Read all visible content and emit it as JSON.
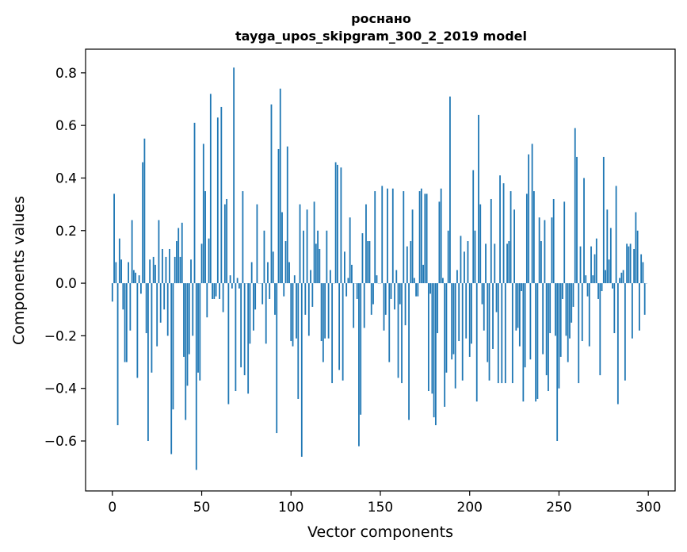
{
  "chart_data": {
    "type": "bar",
    "title_line1": "роснано",
    "title_line2": "tayga_upos_skipgram_300_2_2019 model",
    "xlabel": "Vector components",
    "ylabel": "Components values",
    "xlim": [
      -15,
      315
    ],
    "ylim": [
      -0.79,
      0.89
    ],
    "xticks": [
      0,
      50,
      100,
      150,
      200,
      250,
      300
    ],
    "xtick_labels": [
      "0",
      "50",
      "100",
      "150",
      "200",
      "250",
      "300"
    ],
    "yticks": [
      -0.6,
      -0.4,
      -0.2,
      0.0,
      0.2,
      0.4,
      0.6,
      0.8
    ],
    "ytick_labels": [
      "−0.6",
      "−0.4",
      "−0.2",
      "0.0",
      "0.2",
      "0.4",
      "0.6",
      "0.8"
    ],
    "bar_color": "#1f77b4",
    "grid": false,
    "values": [
      -0.07,
      0.34,
      0.08,
      -0.54,
      0.17,
      0.09,
      -0.1,
      -0.3,
      -0.3,
      0.08,
      -0.18,
      0.24,
      0.05,
      0.04,
      -0.36,
      0.03,
      -0.04,
      0.46,
      0.55,
      -0.19,
      -0.6,
      0.09,
      -0.34,
      0.1,
      0.07,
      -0.24,
      0.24,
      -0.15,
      0.13,
      -0.1,
      0.1,
      -0.2,
      0.13,
      -0.65,
      -0.48,
      0.1,
      0.16,
      0.21,
      0.1,
      0.23,
      -0.28,
      -0.52,
      -0.39,
      -0.27,
      0.09,
      -0.2,
      0.61,
      -0.71,
      -0.34,
      -0.37,
      0.15,
      0.53,
      0.35,
      -0.13,
      0.17,
      0.72,
      -0.06,
      -0.06,
      -0.05,
      0.63,
      -0.06,
      0.67,
      -0.11,
      0.3,
      0.32,
      -0.46,
      0.03,
      -0.02,
      0.82,
      -0.41,
      0.02,
      -0.02,
      -0.32,
      0.35,
      -0.35,
      0.0,
      -0.42,
      -0.23,
      0.08,
      -0.18,
      -0.1,
      0.3,
      0.0,
      0.0,
      -0.08,
      0.2,
      -0.23,
      0.08,
      -0.06,
      0.68,
      0.12,
      -0.12,
      -0.57,
      0.51,
      0.74,
      0.27,
      -0.05,
      0.16,
      0.52,
      0.08,
      -0.22,
      -0.24,
      0.03,
      -0.21,
      -0.44,
      0.3,
      -0.66,
      0.2,
      -0.12,
      0.28,
      -0.2,
      0.05,
      -0.09,
      0.31,
      0.15,
      0.2,
      0.13,
      -0.22,
      -0.3,
      -0.21,
      0.2,
      -0.21,
      0.05,
      -0.38,
      0.0,
      0.46,
      0.45,
      -0.33,
      0.44,
      -0.37,
      0.12,
      -0.05,
      0.02,
      0.25,
      0.07,
      -0.17,
      0.0,
      -0.06,
      -0.62,
      -0.5,
      0.19,
      -0.17,
      0.3,
      0.16,
      0.16,
      -0.12,
      -0.08,
      0.35,
      0.03,
      0.0,
      0.0,
      0.37,
      -0.18,
      -0.12,
      0.36,
      -0.3,
      -0.06,
      0.36,
      -0.1,
      0.05,
      -0.36,
      -0.08,
      -0.38,
      0.35,
      -0.16,
      0.14,
      -0.52,
      0.16,
      0.28,
      0.02,
      -0.05,
      -0.05,
      0.35,
      0.36,
      0.07,
      0.34,
      0.34,
      -0.41,
      -0.04,
      -0.42,
      -0.51,
      -0.54,
      -0.19,
      0.31,
      0.36,
      0.02,
      -0.47,
      -0.34,
      0.2,
      0.71,
      -0.29,
      -0.27,
      -0.4,
      0.05,
      -0.22,
      0.18,
      -0.37,
      0.12,
      -0.21,
      0.16,
      -0.28,
      -0.23,
      0.43,
      0.2,
      -0.45,
      0.64,
      0.3,
      -0.08,
      -0.18,
      0.15,
      -0.3,
      -0.37,
      0.32,
      -0.25,
      0.15,
      -0.11,
      -0.38,
      0.41,
      -0.38,
      0.38,
      -0.38,
      0.15,
      0.16,
      0.35,
      -0.38,
      0.28,
      -0.18,
      -0.17,
      -0.24,
      -0.03,
      -0.45,
      -0.32,
      0.34,
      0.49,
      -0.29,
      0.53,
      0.35,
      -0.45,
      -0.44,
      0.25,
      0.16,
      -0.27,
      0.24,
      -0.35,
      -0.41,
      -0.19,
      0.25,
      0.32,
      -0.2,
      -0.6,
      -0.4,
      -0.28,
      -0.06,
      0.31,
      -0.2,
      -0.3,
      -0.21,
      -0.15,
      -0.09,
      0.59,
      0.48,
      -0.38,
      0.14,
      -0.22,
      0.4,
      0.03,
      -0.05,
      -0.24,
      0.14,
      0.03,
      0.11,
      0.17,
      -0.06,
      -0.35,
      -0.03,
      0.48,
      0.05,
      0.28,
      0.09,
      0.21,
      -0.02,
      -0.19,
      0.37,
      -0.46,
      0.02,
      0.04,
      0.05,
      -0.37,
      0.15,
      0.14,
      0.15,
      -0.21,
      0.13,
      0.27,
      0.2,
      -0.18,
      0.11,
      0.08,
      -0.12,
      0.0
    ]
  }
}
